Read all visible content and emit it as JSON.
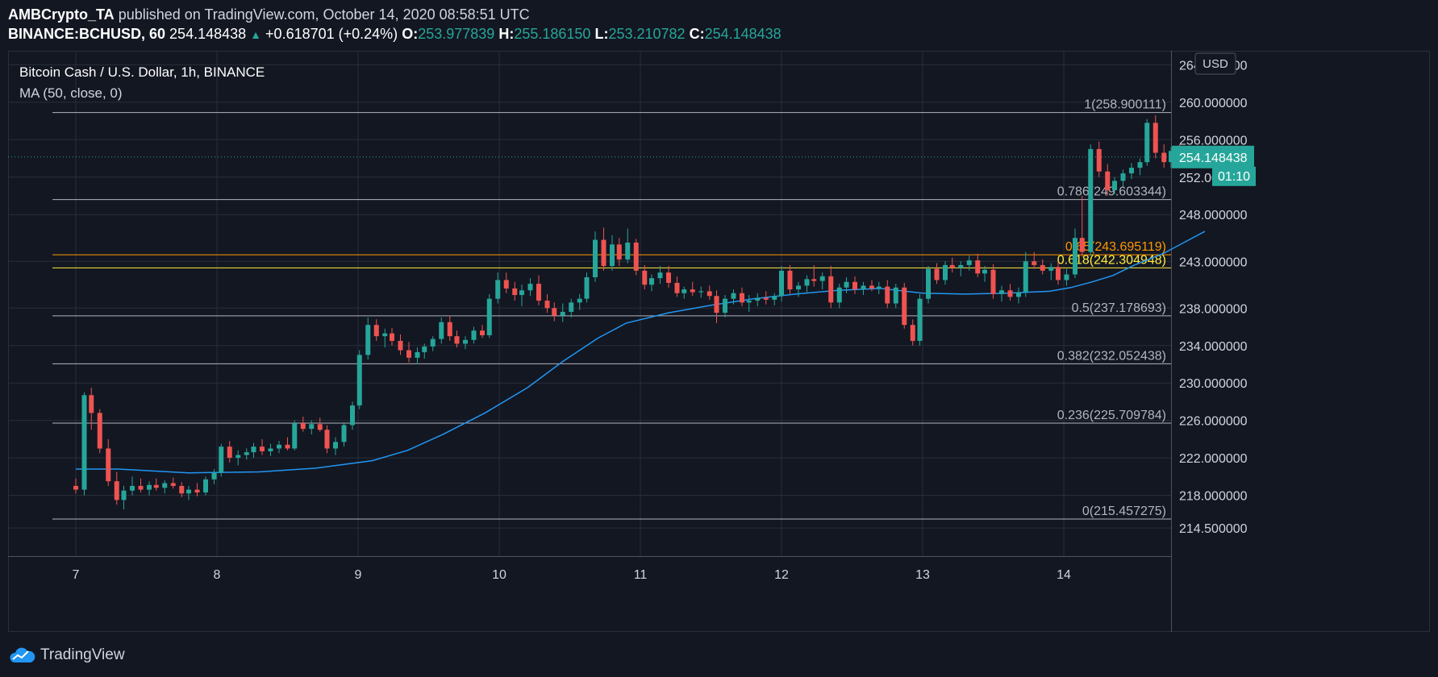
{
  "header": {
    "author": "AMBCrypto_TA",
    "published_text": "published on TradingView.com, October 14, 2020 08:58:51 UTC",
    "symbol": "BINANCE:BCHUSD, 60",
    "price": "254.148438",
    "change": "+0.618701 (+0.24%)",
    "o_label": "O:",
    "o_value": "253.977839",
    "h_label": "H:",
    "h_value": "255.186150",
    "l_label": "L:",
    "l_value": "253.210782",
    "c_label": "C:",
    "c_value": "254.148438"
  },
  "legend": {
    "title": "Bitcoin Cash / U.S. Dollar, 1h, BINANCE",
    "indicator": "MA (50, close, 0)"
  },
  "footer": {
    "brand": "TradingView"
  },
  "chart_data": {
    "type": "candlestick",
    "currency_label": "USD",
    "price_axis": {
      "ticks": [
        "264.000000",
        "260.000000",
        "256.000000",
        "252.000000",
        "248.000000",
        "243.000000",
        "238.000000",
        "234.000000",
        "230.000000",
        "226.000000",
        "222.000000",
        "218.000000",
        "214.500000"
      ],
      "min": 211.5,
      "max": 265.5
    },
    "time_axis": {
      "labels": [
        "7",
        "8",
        "9",
        "10",
        "11",
        "12",
        "13",
        "14"
      ]
    },
    "current_price_label": "254.148438",
    "countdown_label": "01:10",
    "fib_levels": [
      {
        "label": "1(258.900111)",
        "price": 258.900111,
        "color": "#b2b5be"
      },
      {
        "label": "0.786(249.603344)",
        "price": 249.603344,
        "color": "#b2b5be"
      },
      {
        "label": "0.65(243.695119)",
        "price": 243.695119,
        "color": "#ff9800"
      },
      {
        "label": "0.618(242.304948)",
        "price": 242.304948,
        "color": "#ffeb3b"
      },
      {
        "label": "0.5(237.178693)",
        "price": 237.178693,
        "color": "#b2b5be"
      },
      {
        "label": "0.382(232.052438)",
        "price": 232.052438,
        "color": "#b2b5be"
      },
      {
        "label": "0.236(225.709784)",
        "price": 225.709784,
        "color": "#b2b5be"
      },
      {
        "label": "0(215.457275)",
        "price": 215.457275,
        "color": "#b2b5be"
      }
    ],
    "ma_series": {
      "name": "MA (50, close, 0)",
      "color": "#2196f3",
      "points": [
        [
          0,
          220.8
        ],
        [
          0.3,
          220.8
        ],
        [
          0.8,
          220.4
        ],
        [
          1.3,
          220.5
        ],
        [
          1.7,
          220.9
        ],
        [
          2.1,
          221.7
        ],
        [
          2.35,
          222.8
        ],
        [
          2.6,
          224.5
        ],
        [
          2.9,
          226.8
        ],
        [
          3.2,
          229.5
        ],
        [
          3.45,
          232.3
        ],
        [
          3.7,
          234.8
        ],
        [
          3.9,
          236.4
        ],
        [
          4.2,
          237.5
        ],
        [
          4.5,
          238.3
        ],
        [
          4.8,
          239.0
        ],
        [
          5.1,
          239.5
        ],
        [
          5.4,
          239.9
        ],
        [
          5.7,
          240.1
        ],
        [
          6.0,
          239.6
        ],
        [
          6.3,
          239.5
        ],
        [
          6.6,
          239.6
        ],
        [
          6.9,
          239.8
        ],
        [
          7.05,
          240.2
        ],
        [
          7.2,
          240.8
        ],
        [
          7.35,
          241.5
        ],
        [
          7.5,
          242.6
        ],
        [
          7.7,
          243.8
        ],
        [
          7.85,
          245.0
        ],
        [
          8.0,
          246.2
        ]
      ]
    },
    "series_color_up": "#26a69a",
    "series_color_down": "#ef5350",
    "candles": [
      [
        0,
        219.0,
        219.8,
        218.2,
        218.6
      ],
      [
        0.06,
        218.6,
        229.0,
        218.0,
        228.7
      ],
      [
        0.11,
        228.7,
        229.5,
        225.0,
        226.8
      ],
      [
        0.17,
        226.8,
        227.2,
        222.5,
        223.0
      ],
      [
        0.23,
        223.0,
        224.0,
        219.0,
        219.5
      ],
      [
        0.29,
        219.5,
        220.5,
        217.0,
        217.5
      ],
      [
        0.34,
        217.5,
        219.0,
        216.5,
        218.5
      ],
      [
        0.4,
        218.5,
        220.0,
        218.0,
        219.0
      ],
      [
        0.46,
        219.0,
        219.8,
        218.3,
        218.6
      ],
      [
        0.52,
        218.6,
        219.5,
        218.0,
        219.1
      ],
      [
        0.57,
        219.1,
        219.8,
        218.5,
        218.8
      ],
      [
        0.63,
        218.8,
        219.6,
        218.2,
        219.3
      ],
      [
        0.69,
        219.3,
        219.9,
        218.7,
        219.0
      ],
      [
        0.75,
        219.0,
        219.4,
        217.8,
        218.2
      ],
      [
        0.8,
        218.2,
        219.0,
        217.5,
        218.6
      ],
      [
        0.86,
        218.6,
        219.3,
        217.9,
        218.3
      ],
      [
        0.92,
        218.3,
        220.0,
        218.0,
        219.7
      ],
      [
        0.98,
        219.7,
        220.8,
        219.2,
        220.4
      ],
      [
        1.03,
        220.4,
        223.5,
        220.0,
        223.2
      ],
      [
        1.09,
        223.2,
        223.8,
        221.5,
        222.0
      ],
      [
        1.15,
        222.0,
        222.8,
        221.2,
        222.3
      ],
      [
        1.21,
        222.3,
        223.0,
        221.8,
        222.6
      ],
      [
        1.26,
        222.6,
        223.6,
        222.0,
        223.2
      ],
      [
        1.32,
        223.2,
        224.0,
        222.3,
        222.7
      ],
      [
        1.38,
        222.7,
        223.5,
        222.2,
        223.0
      ],
      [
        1.44,
        223.0,
        223.8,
        222.5,
        223.4
      ],
      [
        1.5,
        223.4,
        224.2,
        222.8,
        223.0
      ],
      [
        1.55,
        223.0,
        226.0,
        222.8,
        225.7
      ],
      [
        1.61,
        225.7,
        226.4,
        224.8,
        225.1
      ],
      [
        1.67,
        225.1,
        226.0,
        224.5,
        225.6
      ],
      [
        1.73,
        225.6,
        226.3,
        224.8,
        225.0
      ],
      [
        1.78,
        225.0,
        225.5,
        222.5,
        223.0
      ],
      [
        1.84,
        223.0,
        224.2,
        222.3,
        223.7
      ],
      [
        1.9,
        223.7,
        225.8,
        223.2,
        225.5
      ],
      [
        1.96,
        225.5,
        228.0,
        225.0,
        227.6
      ],
      [
        2.01,
        227.6,
        233.5,
        227.2,
        233.0
      ],
      [
        2.07,
        233.0,
        237.0,
        232.5,
        236.2
      ],
      [
        2.13,
        236.2,
        236.8,
        234.5,
        235.0
      ],
      [
        2.19,
        235.0,
        235.8,
        233.8,
        235.3
      ],
      [
        2.24,
        235.3,
        235.9,
        234.0,
        234.5
      ],
      [
        2.3,
        234.5,
        235.2,
        233.0,
        233.5
      ],
      [
        2.36,
        233.5,
        234.4,
        232.2,
        232.7
      ],
      [
        2.42,
        232.7,
        233.8,
        232.0,
        233.3
      ],
      [
        2.47,
        233.3,
        234.2,
        232.6,
        233.9
      ],
      [
        2.53,
        233.9,
        235.0,
        233.4,
        234.7
      ],
      [
        2.59,
        234.7,
        237.0,
        234.2,
        236.5
      ],
      [
        2.65,
        236.5,
        237.2,
        234.5,
        235.0
      ],
      [
        2.7,
        235.0,
        235.6,
        233.8,
        234.2
      ],
      [
        2.76,
        234.2,
        235.0,
        233.6,
        234.6
      ],
      [
        2.82,
        234.6,
        236.0,
        234.2,
        235.6
      ],
      [
        2.88,
        235.6,
        236.2,
        234.8,
        235.1
      ],
      [
        2.93,
        235.1,
        239.5,
        234.8,
        239.0
      ],
      [
        2.99,
        239.0,
        241.8,
        238.5,
        241.0
      ],
      [
        3.05,
        241.0,
        241.8,
        239.6,
        240.1
      ],
      [
        3.11,
        240.1,
        240.8,
        238.8,
        239.4
      ],
      [
        3.16,
        239.4,
        240.5,
        238.2,
        239.9
      ],
      [
        3.22,
        239.9,
        241.2,
        239.3,
        240.6
      ],
      [
        3.28,
        240.6,
        241.5,
        238.3,
        238.8
      ],
      [
        3.34,
        238.8,
        239.5,
        237.5,
        238.0
      ],
      [
        3.39,
        238.0,
        238.6,
        236.6,
        237.2
      ],
      [
        3.45,
        237.2,
        238.5,
        236.5,
        237.6
      ],
      [
        3.51,
        237.6,
        239.0,
        237.0,
        238.6
      ],
      [
        3.57,
        238.6,
        239.5,
        237.8,
        239.0
      ],
      [
        3.62,
        239.0,
        241.8,
        238.6,
        241.3
      ],
      [
        3.68,
        241.3,
        246.2,
        240.8,
        245.3
      ],
      [
        3.74,
        245.3,
        246.6,
        242.0,
        242.5
      ],
      [
        3.8,
        242.5,
        245.8,
        242.0,
        244.8
      ],
      [
        3.85,
        244.8,
        245.5,
        242.5,
        243.2
      ],
      [
        3.91,
        243.2,
        246.5,
        242.8,
        245.0
      ],
      [
        3.97,
        245.0,
        245.4,
        241.5,
        242.0
      ],
      [
        4.03,
        242.0,
        242.6,
        240.0,
        240.5
      ],
      [
        4.08,
        240.5,
        241.6,
        239.8,
        241.2
      ],
      [
        4.14,
        241.2,
        242.5,
        240.6,
        241.8
      ],
      [
        4.2,
        241.8,
        242.5,
        240.2,
        240.7
      ],
      [
        4.26,
        240.7,
        241.4,
        239.2,
        239.6
      ],
      [
        4.31,
        239.6,
        240.3,
        239.0,
        240.0
      ],
      [
        4.37,
        240.0,
        240.8,
        239.3,
        239.7
      ],
      [
        4.43,
        239.7,
        240.3,
        239.1,
        239.8
      ],
      [
        4.49,
        239.8,
        240.4,
        238.9,
        239.3
      ],
      [
        4.54,
        239.3,
        239.9,
        236.4,
        237.5
      ],
      [
        4.6,
        237.5,
        239.4,
        237.0,
        239.0
      ],
      [
        4.66,
        239.0,
        240.0,
        238.4,
        239.6
      ],
      [
        4.72,
        239.6,
        240.2,
        238.2,
        238.6
      ],
      [
        4.77,
        238.6,
        239.4,
        237.6,
        238.8
      ],
      [
        4.83,
        238.8,
        239.6,
        238.2,
        239.1
      ],
      [
        4.89,
        239.1,
        239.8,
        238.4,
        238.9
      ],
      [
        4.95,
        238.9,
        239.6,
        238.3,
        239.3
      ],
      [
        5.0,
        239.3,
        242.5,
        238.7,
        242.0
      ],
      [
        5.06,
        242.0,
        242.6,
        239.5,
        240.0
      ],
      [
        5.12,
        240.0,
        240.8,
        239.2,
        240.4
      ],
      [
        5.18,
        240.4,
        241.5,
        239.7,
        241.1
      ],
      [
        5.23,
        241.1,
        242.6,
        240.3,
        240.9
      ],
      [
        5.29,
        240.9,
        241.8,
        240.0,
        241.4
      ],
      [
        5.35,
        241.4,
        242.5,
        238.0,
        238.6
      ],
      [
        5.41,
        238.6,
        240.6,
        238.0,
        240.2
      ],
      [
        5.46,
        240.2,
        241.3,
        239.6,
        240.8
      ],
      [
        5.52,
        240.8,
        241.4,
        239.5,
        240.0
      ],
      [
        5.58,
        240.0,
        240.8,
        239.4,
        240.4
      ],
      [
        5.64,
        240.4,
        241.0,
        239.8,
        240.1
      ],
      [
        5.69,
        240.1,
        240.8,
        239.5,
        240.3
      ],
      [
        5.75,
        240.3,
        241.0,
        238.0,
        238.5
      ],
      [
        5.81,
        238.5,
        240.6,
        238.0,
        240.2
      ],
      [
        5.87,
        240.2,
        240.7,
        235.8,
        236.2
      ],
      [
        5.93,
        236.2,
        236.8,
        234.0,
        234.5
      ],
      [
        5.98,
        234.5,
        239.5,
        234.0,
        239.0
      ],
      [
        6.04,
        239.0,
        242.5,
        238.5,
        242.2
      ],
      [
        6.1,
        242.2,
        242.8,
        240.6,
        241.0
      ],
      [
        6.16,
        241.0,
        243.0,
        240.5,
        242.6
      ],
      [
        6.21,
        242.6,
        243.4,
        241.8,
        242.3
      ],
      [
        6.27,
        242.3,
        243.0,
        241.4,
        242.6
      ],
      [
        6.33,
        242.6,
        243.6,
        242.0,
        243.1
      ],
      [
        6.39,
        243.1,
        243.8,
        241.3,
        241.7
      ],
      [
        6.44,
        241.7,
        242.5,
        240.8,
        242.1
      ],
      [
        6.5,
        242.1,
        242.7,
        239.0,
        239.5
      ],
      [
        6.56,
        239.5,
        240.4,
        238.7,
        239.9
      ],
      [
        6.62,
        239.9,
        240.6,
        238.8,
        239.2
      ],
      [
        6.68,
        239.2,
        240.2,
        238.5,
        239.7
      ],
      [
        6.73,
        239.7,
        244.0,
        239.2,
        243.0
      ],
      [
        6.79,
        243.0,
        244.0,
        242.2,
        242.6
      ],
      [
        6.85,
        242.6,
        243.2,
        241.6,
        242.0
      ],
      [
        6.91,
        242.0,
        242.8,
        241.0,
        242.4
      ],
      [
        6.96,
        242.4,
        243.0,
        240.5,
        241.0
      ],
      [
        7.02,
        241.0,
        242.2,
        240.4,
        241.6
      ],
      [
        7.08,
        241.6,
        246.5,
        241.2,
        245.5
      ],
      [
        7.13,
        245.5,
        250.0,
        243.5,
        244.0
      ],
      [
        7.19,
        244.0,
        255.5,
        243.6,
        255.0
      ],
      [
        7.25,
        255.0,
        255.8,
        252.0,
        252.6
      ],
      [
        7.31,
        252.6,
        253.4,
        250.0,
        250.6
      ],
      [
        7.36,
        250.6,
        252.0,
        250.2,
        251.6
      ],
      [
        7.42,
        251.6,
        252.8,
        251.0,
        252.4
      ],
      [
        7.48,
        252.4,
        253.5,
        251.8,
        253.0
      ],
      [
        7.54,
        253.0,
        254.0,
        252.2,
        253.6
      ],
      [
        7.59,
        253.6,
        258.2,
        253.2,
        257.8
      ],
      [
        7.65,
        257.8,
        258.6,
        254.0,
        254.6
      ],
      [
        7.71,
        254.6,
        255.5,
        253.0,
        253.6
      ],
      [
        7.76,
        253.6,
        255.2,
        253.0,
        254.8
      ],
      [
        7.82,
        254.8,
        255.5,
        253.5,
        254.0
      ],
      [
        7.87,
        254.0,
        255.0,
        253.2,
        254.1
      ]
    ]
  }
}
